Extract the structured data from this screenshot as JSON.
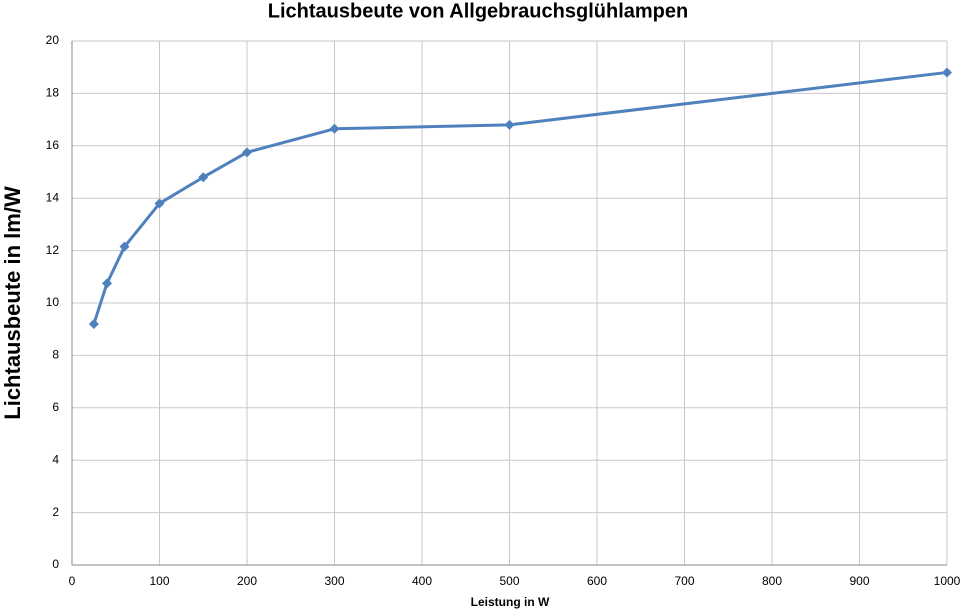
{
  "chart_data": {
    "type": "line",
    "title": "Lichtausbeute von Allgebrauchsglühlampen",
    "x_label": "Leistung in W",
    "y_label": "Lichtausbeute in lm/W",
    "x": [
      25,
      40,
      60,
      100,
      150,
      200,
      300,
      500,
      1000
    ],
    "series": [
      {
        "name": "Lichtausbeute",
        "color": "#4f81bd",
        "values": [
          9.2,
          10.75,
          12.15,
          13.8,
          14.8,
          15.75,
          16.65,
          16.8,
          18.8
        ]
      }
    ],
    "xlim": [
      0,
      1000
    ],
    "xticks": [
      0,
      100,
      200,
      300,
      400,
      500,
      600,
      700,
      800,
      900,
      1000
    ],
    "ylim": [
      0,
      20
    ],
    "yticks": [
      0,
      2,
      4,
      6,
      8,
      10,
      12,
      14,
      16,
      18,
      20
    ],
    "grid": true
  }
}
